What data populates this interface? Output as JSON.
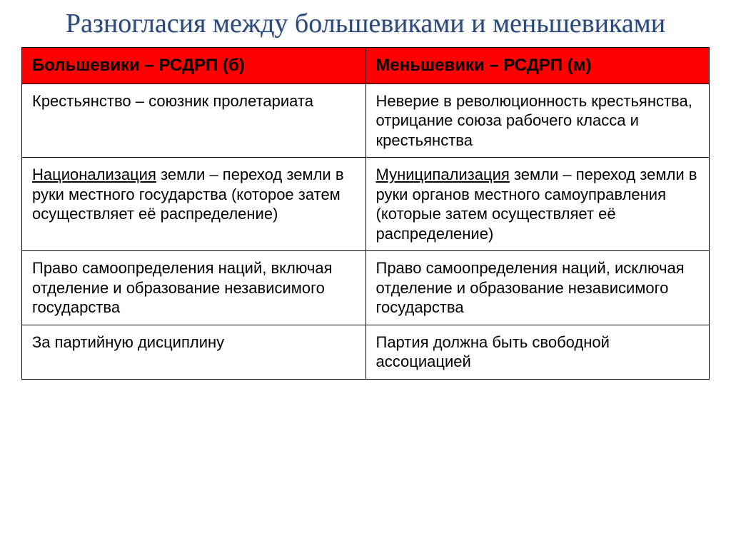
{
  "title": "Разногласия между большевиками и меньшевиками",
  "table": {
    "header_bg": "#ff0000",
    "border_color": "#000000",
    "title_color": "#2b4a7a",
    "columns": [
      "Большевики – РСДРП (б)",
      "Меньшевики – РСДРП (м)"
    ],
    "rows": [
      {
        "left_plain": "Крестьянство – союзник пролетариата",
        "right_plain": "Неверие в  революционность крестьянства, отрицание союза рабочего класса и крестьянства"
      },
      {
        "left_underlined": "Национализация",
        "left_rest": " земли – переход земли в руки местного государства (которое затем осуществляет её распределение)",
        "right_underlined": "Муниципализация",
        "right_rest": " земли – переход земли в руки органов местного самоуправления (которые затем осуществляет её распределение)"
      },
      {
        "left_plain": "Право самоопределения наций, включая отделение и образование независимого государства",
        "right_plain": "Право самоопределения наций, исключая отделение и образование независимого государства"
      },
      {
        "left_plain": "За партийную дисциплину",
        "right_plain": "Партия должна быть свободной ассоциацией"
      }
    ]
  }
}
